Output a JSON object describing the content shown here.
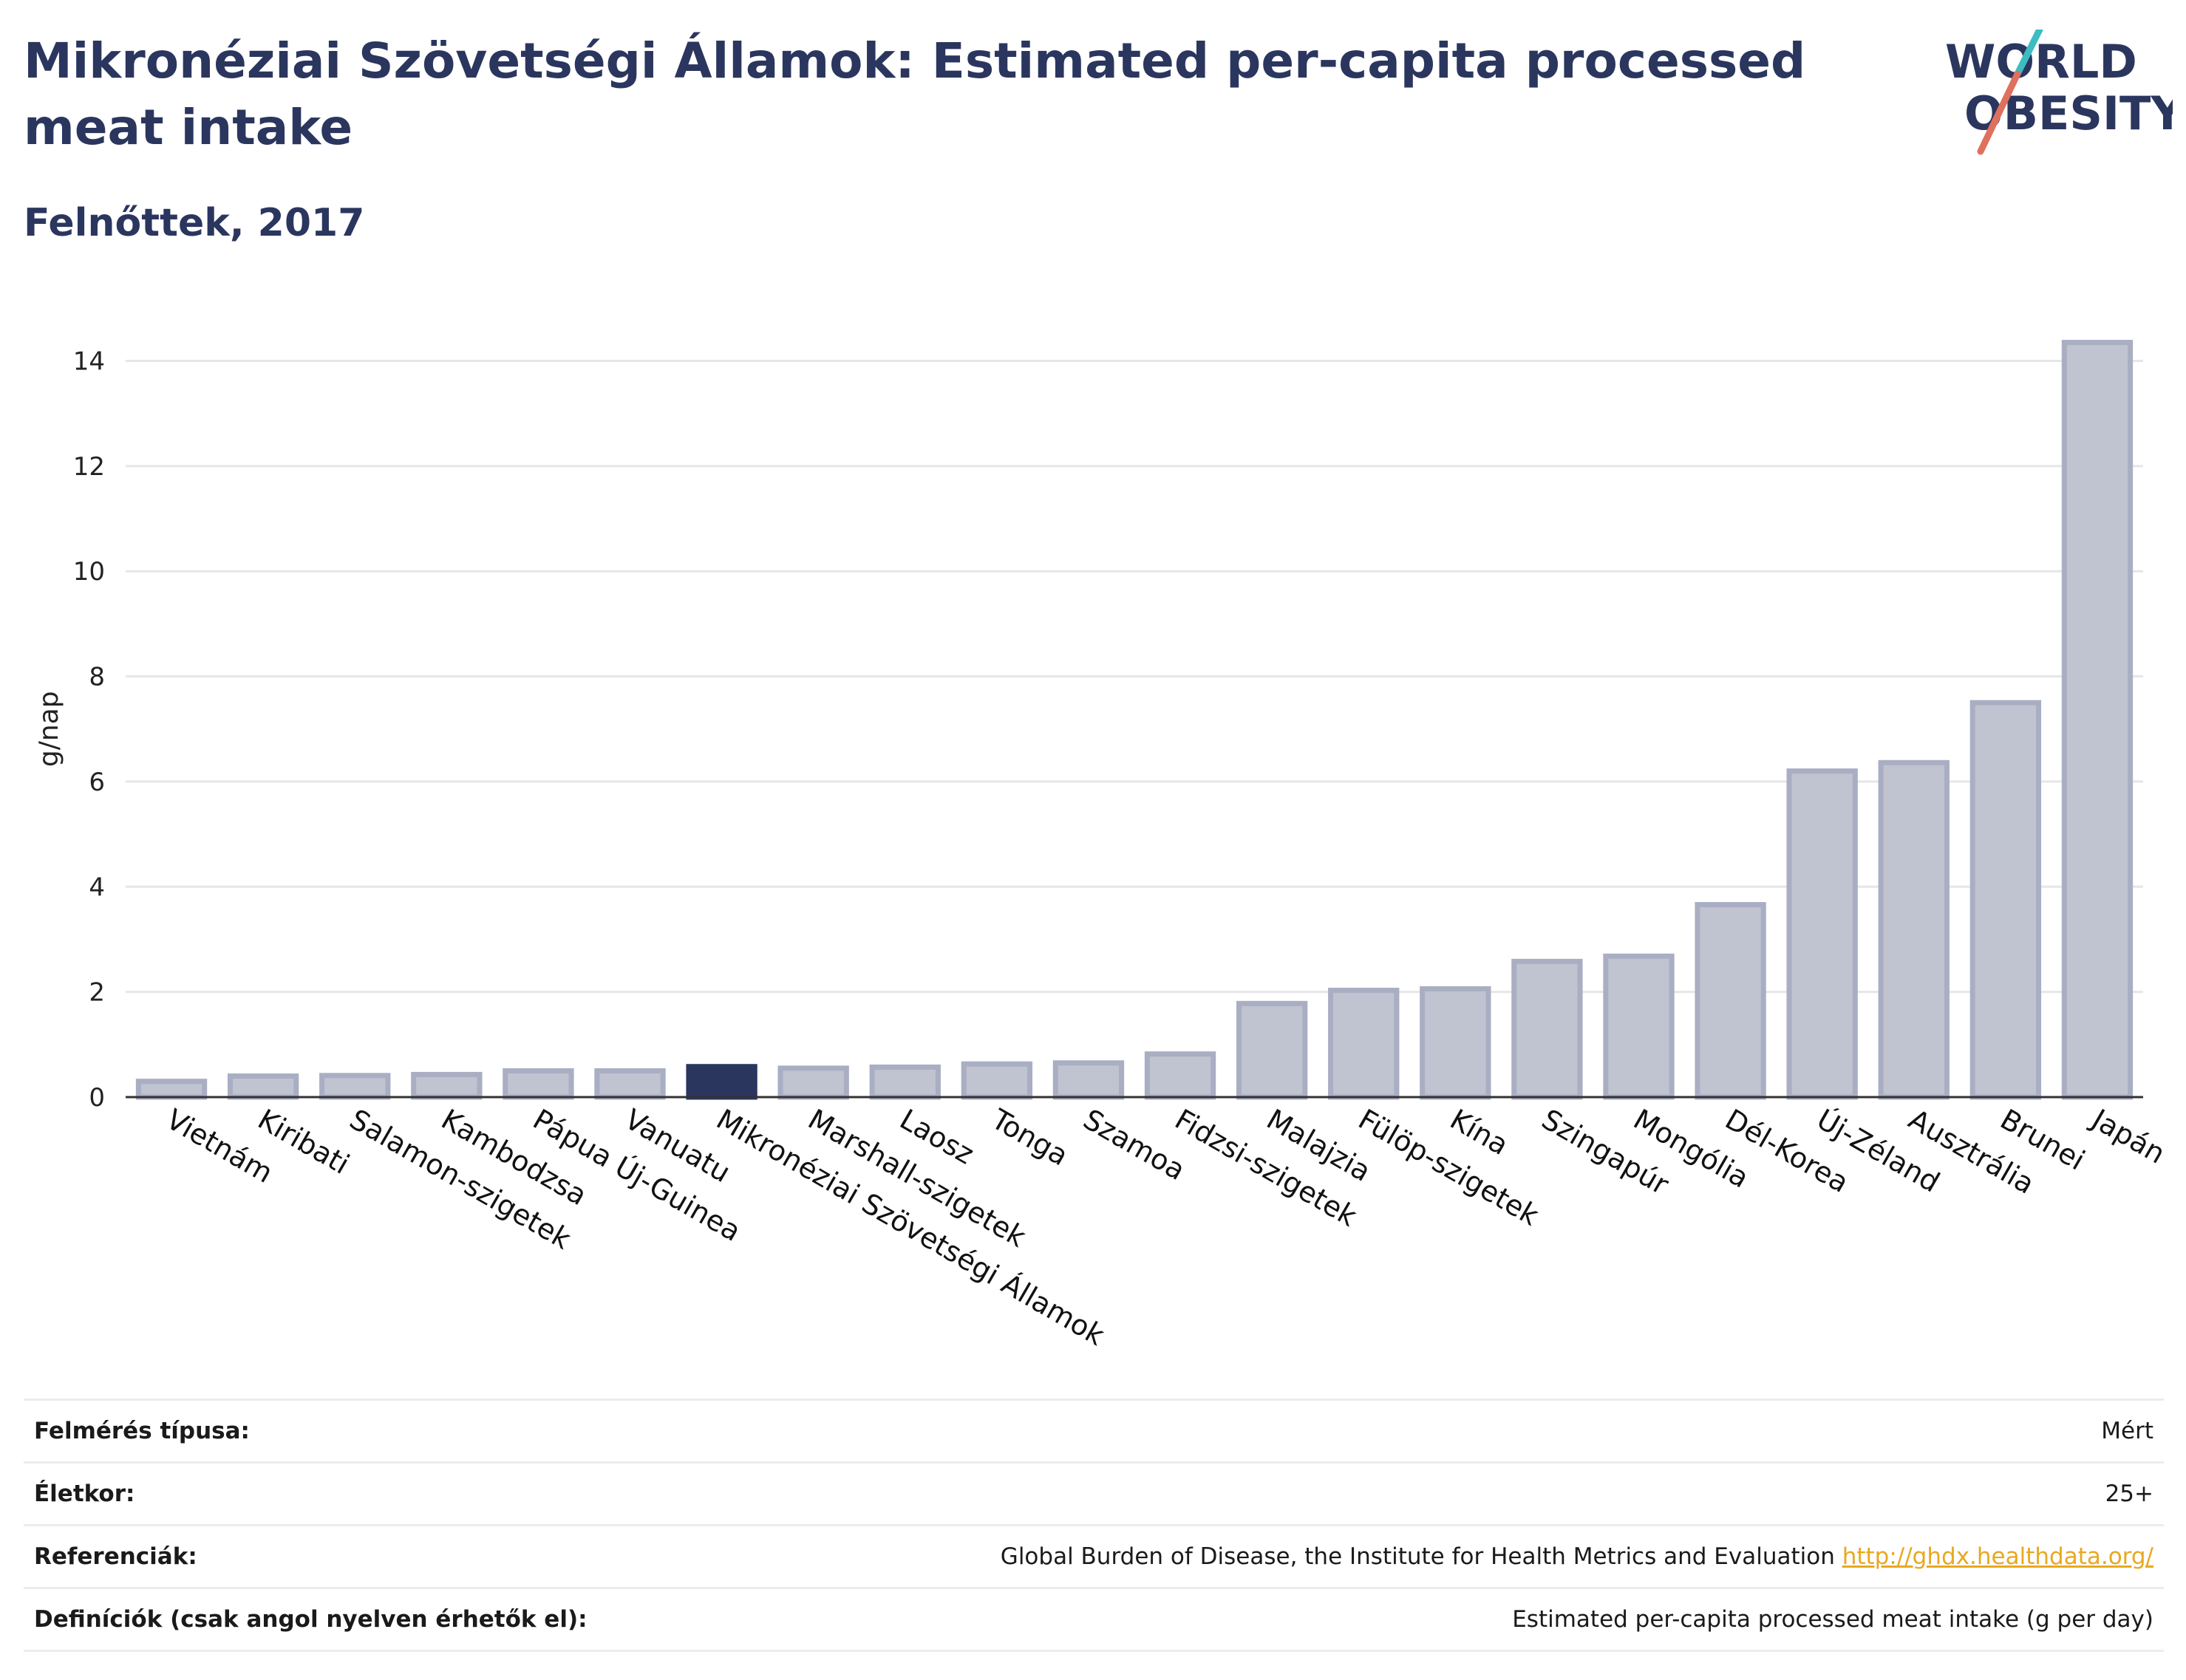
{
  "header": {
    "title": "Mikronéziai Szövetségi Államok: Estimated per-capita processed meat intake",
    "subtitle": "Felnőttek, 2017"
  },
  "logo": {
    "line1": "WORLD",
    "line2": "OBESITY",
    "text_color": "#2b365f",
    "slash_top_color": "#3bbdc1",
    "slash_bottom_color": "#e0705e"
  },
  "colors": {
    "bar": "#c0c3d0",
    "bar_stroke": "#a9aec3",
    "highlight": "#2b365f",
    "grid": "#e6e6e6",
    "axis": "#333333"
  },
  "chart_data": {
    "type": "bar",
    "ylabel": "g/nap",
    "xlabel": "",
    "ylim": [
      0,
      15
    ],
    "yticks": [
      0,
      2,
      4,
      6,
      8,
      10,
      12,
      14
    ],
    "grid": true,
    "highlight": "Mikronéziai Szövetségi Államok",
    "categories": [
      "Vietnám",
      "Kiribati",
      "Salamon-szigetek",
      "Kambodzsa",
      "Pápua Új-Guinea",
      "Vanuatu",
      "Mikronéziai Szövetségi Államok",
      "Marshall-szigetek",
      "Laosz",
      "Tonga",
      "Szamoa",
      "Fidzsi-szigetek",
      "Malajzia",
      "Fülöp-szigetek",
      "Kína",
      "Szingapúr",
      "Mongólia",
      "Dél-Korea",
      "Új-Zéland",
      "Ausztrália",
      "Brunei",
      "Japán"
    ],
    "values": [
      0.3,
      0.4,
      0.41,
      0.43,
      0.5,
      0.5,
      0.58,
      0.55,
      0.57,
      0.63,
      0.65,
      0.82,
      1.78,
      2.03,
      2.06,
      2.58,
      2.68,
      3.66,
      6.2,
      6.36,
      7.5,
      14.35
    ]
  },
  "meta": {
    "rows": [
      {
        "label": "Felmérés típusa:",
        "value": "Mért"
      },
      {
        "label": "Életkor:",
        "value": "25+"
      },
      {
        "label": "Referenciák:",
        "value": "Global Burden of Disease, the Institute for Health Metrics and Evaluation",
        "link": "http://ghdx.healthdata.org/"
      },
      {
        "label": "Definíciók (csak angol nyelven érhetők el):",
        "value": "Estimated per-capita processed meat intake (g per day)"
      }
    ]
  }
}
